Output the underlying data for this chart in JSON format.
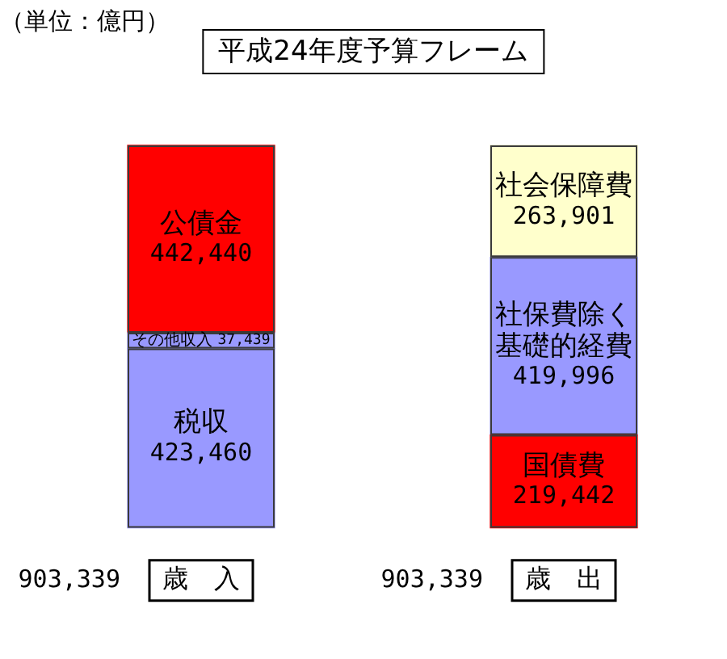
{
  "chart_data": {
    "type": "bar",
    "title": "平成24年度予算フレーム",
    "annotations": [
      "（単位：億円）"
    ],
    "categories": [
      "歳　入",
      "歳　出"
    ],
    "stacked": true,
    "series": [
      {
        "name": "税収",
        "color": "#9999ff",
        "values": [
          423460,
          null
        ],
        "value_labels": [
          "423,460",
          null
        ]
      },
      {
        "name": "その他収入",
        "color": "#9999ff",
        "values": [
          37439,
          null
        ],
        "value_labels": [
          "37,439",
          null
        ]
      },
      {
        "name": "公債金",
        "color": "#ff0000",
        "values": [
          442440,
          null
        ],
        "value_labels": [
          "442,440",
          null
        ]
      },
      {
        "name": "国債費",
        "color": "#ff0000",
        "values": [
          null,
          219442
        ],
        "value_labels": [
          null,
          "219,442"
        ]
      },
      {
        "name": "社保費除く基礎的経費",
        "color": "#9999ff",
        "values": [
          null,
          419996
        ],
        "value_labels": [
          null,
          "419,996"
        ]
      },
      {
        "name": "社会保障費",
        "color": "#ffffcc",
        "values": [
          null,
          263901
        ],
        "value_labels": [
          null,
          "263,901"
        ]
      }
    ],
    "totals": [
      "903,339",
      "903,339"
    ]
  }
}
